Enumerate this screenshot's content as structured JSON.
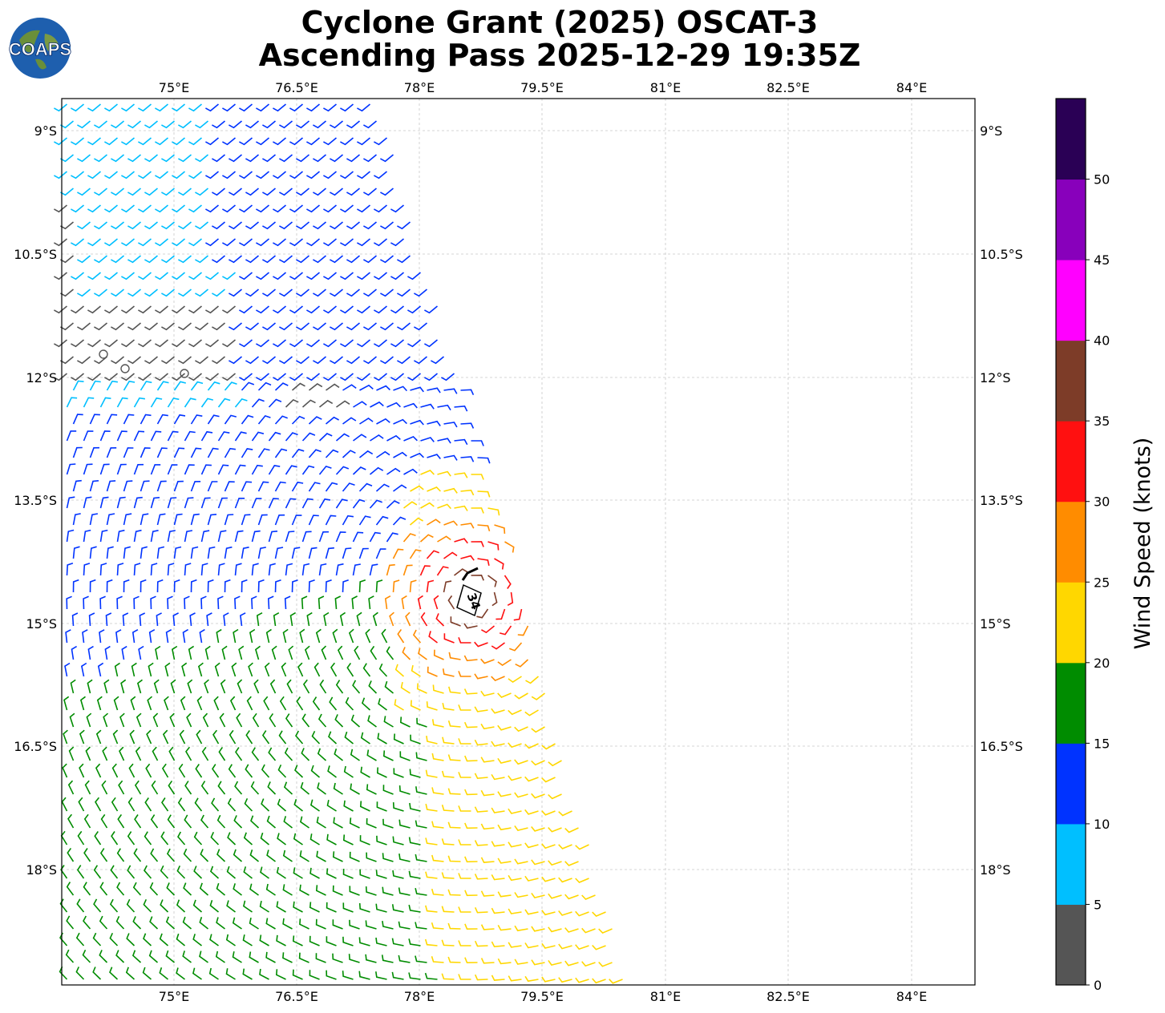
{
  "header": {
    "title_line1": "Cyclone Grant (2025) OSCAT-3",
    "title_line2": "Ascending Pass 2025-12-29 19:35Z",
    "logo_text": "COAPS"
  },
  "map": {
    "lon_ticks": [
      "75°E",
      "76.5°E",
      "78°E",
      "79.5°E",
      "81°E",
      "82.5°E",
      "84°E"
    ],
    "lat_ticks": [
      "9°S",
      "10.5°S",
      "12°S",
      "13.5°S",
      "15°S",
      "16.5°S",
      "18°S"
    ],
    "storm_marker_label": "34",
    "grid": true
  },
  "colorbar": {
    "label": "Wind Speed (knots)",
    "ticks": [
      "0",
      "5",
      "10",
      "15",
      "20",
      "25",
      "30",
      "35",
      "40",
      "45",
      "50"
    ],
    "colors": [
      "#555555",
      "#00bfff",
      "#0033ff",
      "#008c00",
      "#ffd700",
      "#ff8c00",
      "#ff1010",
      "#7d3c28",
      "#ff00ff",
      "#8800bb",
      "#2a0055"
    ]
  }
}
